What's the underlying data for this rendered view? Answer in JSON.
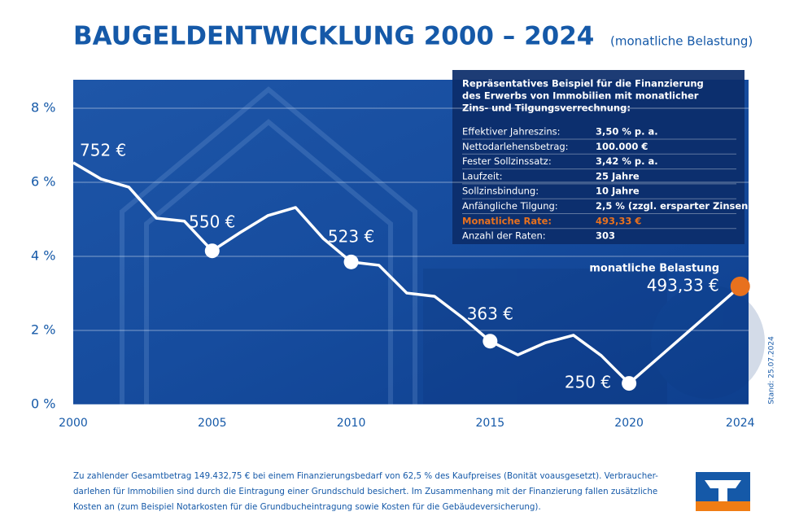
{
  "chart_data": {
    "type": "line",
    "title": "BAUGELDENTWICKLUNG 2000 – 2024",
    "subtitle": "(monatliche Belastung)",
    "x": [
      2000,
      2001,
      2002,
      2003,
      2004,
      2005,
      2006,
      2007,
      2008,
      2009,
      2010,
      2011,
      2012,
      2013,
      2014,
      2015,
      2016,
      2017,
      2018,
      2019,
      2020,
      2024
    ],
    "series": [
      {
        "color": "#ffffff",
        "values": [
          6.53,
          6.09,
          5.87,
          5.03,
          4.95,
          4.15,
          4.64,
          5.1,
          5.32,
          4.48,
          3.85,
          3.76,
          3.01,
          2.92,
          2.35,
          1.71,
          1.34,
          1.67,
          1.87,
          1.32,
          0.57,
          3.19
        ]
      }
    ],
    "xlim": [
      2000,
      2024.3
    ],
    "xticks": [
      2000,
      2005,
      2010,
      2015,
      2020,
      2024
    ],
    "ylim": [
      0,
      8.77
    ],
    "yticks": [
      {
        "value": 0,
        "label": "0 %"
      },
      {
        "value": 2,
        "label": "2 %"
      },
      {
        "value": 4,
        "label": "4 %"
      },
      {
        "value": 6,
        "label": "6 %"
      },
      {
        "value": 8,
        "label": "8 %"
      }
    ],
    "grid": true,
    "highlight_color": "#e8711e",
    "annotations": [
      {
        "x": 2000,
        "label": "752 €"
      },
      {
        "x": 2005,
        "label": "550 €"
      },
      {
        "x": 2010,
        "label": "523 €"
      },
      {
        "x": 2015,
        "label": "363 €"
      },
      {
        "x": 2020,
        "label": "250 €"
      },
      {
        "x": 2024,
        "label": "493,33 €",
        "caption": "monatliche Belastung"
      }
    ],
    "info_box": {
      "title": [
        "Repräsentatives Beispiel für die Finanzierung",
        "des Erwerbs von Immobilien mit monatlicher",
        "Zins- und Tilgungsverrechnung:"
      ],
      "rows": [
        [
          "Effektiver Jahreszins:",
          "3,50 % p. a."
        ],
        [
          "Nettodarlehensbetrag:",
          "100.000 €"
        ],
        [
          "Fester Sollzinssatz:",
          "3,42 % p. a."
        ],
        [
          "Laufzeit:",
          "25 Jahre"
        ],
        [
          "Sollzinsbindung:",
          "10 Jahre"
        ],
        [
          "Anfängliche Tilgung:",
          "2,5 % (zzgl. ersparter Zinsen)"
        ],
        [
          "Monatliche Rate:",
          "493,33 €"
        ],
        [
          "Anzahl der Raten:",
          "303"
        ]
      ],
      "highlight_row": 6
    },
    "stand": "Stand: 25.07.2024",
    "footnote": [
      "Zu zahlender Gesamtbetrag 149.432,75 € bei einem Finanzierungsbedarf von 62,5 % des Kaufpreises (Bonität voausgesetzt). Verbraucher-",
      "darlehen für Immobilien sind durch die Eintragung einer Grundschuld besichert. Im Zusammenhang mit der Finanzierung fallen zusätzliche",
      "Kosten an (zum Beispiel Notarkosten für die Grundbucheintragung sowie Kosten für die Gebäudeversicherung)."
    ]
  }
}
